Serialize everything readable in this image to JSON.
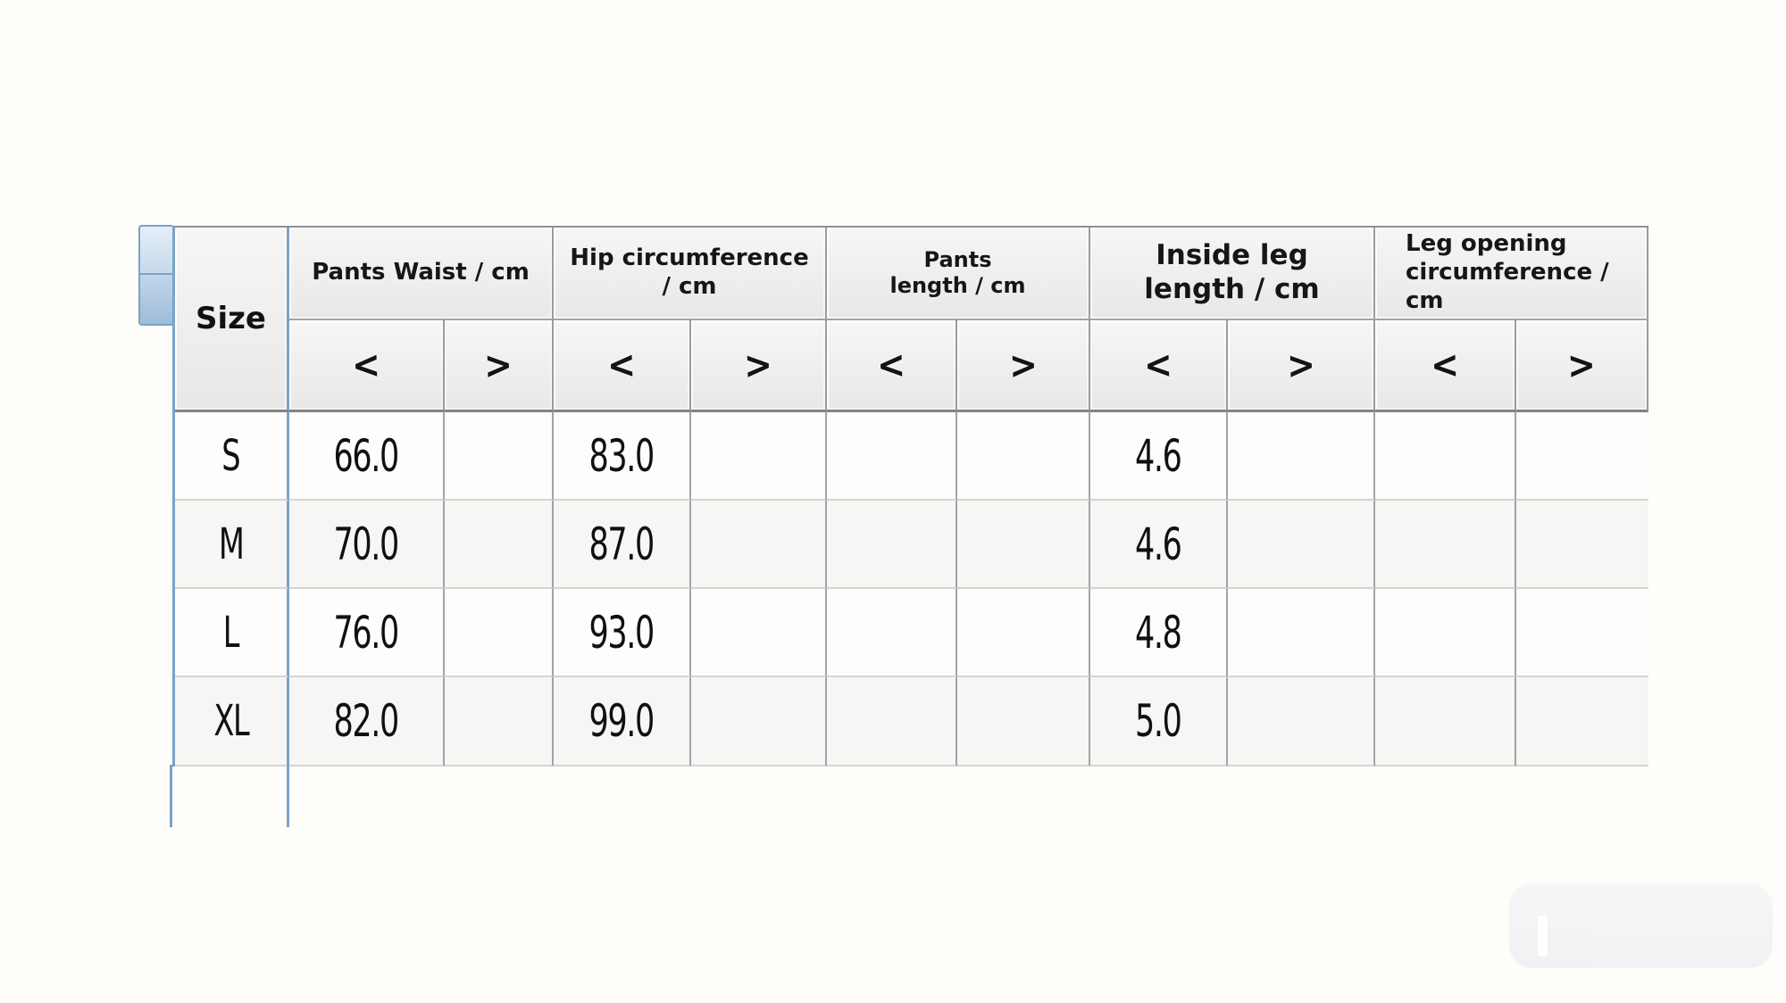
{
  "table": {
    "size_header": "Size",
    "groups": [
      {
        "line1": "Pants Waist / cm",
        "line2": ""
      },
      {
        "line1": "Hip circumference",
        "line2": "/ cm"
      },
      {
        "line1": "Pants",
        "line2": "length / cm"
      },
      {
        "line1": "Inside leg",
        "line2": "length / cm"
      },
      {
        "line1": "Leg opening",
        "line2": "circumference / cm"
      }
    ],
    "arrows": [
      "<",
      ">",
      "<",
      ">",
      "<",
      ">",
      "<",
      ">",
      "<",
      ">"
    ],
    "rows": [
      {
        "size": "S",
        "cells": [
          "66.0",
          "",
          "83.0",
          "",
          "",
          "",
          "4.6",
          "",
          "",
          ""
        ]
      },
      {
        "size": "M",
        "cells": [
          "70.0",
          "",
          "87.0",
          "",
          "",
          "",
          "4.6",
          "",
          "",
          ""
        ]
      },
      {
        "size": "L",
        "cells": [
          "76.0",
          "",
          "93.0",
          "",
          "",
          "",
          "4.8",
          "",
          "",
          ""
        ]
      },
      {
        "size": "XL",
        "cells": [
          "82.0",
          "",
          "99.0",
          "",
          "",
          "",
          "5.0",
          "",
          "",
          ""
        ]
      }
    ]
  },
  "colors": {
    "accent_blue": "#7ba3c7",
    "header_border": "#8f8f8f",
    "grid_line": "#a3a3a3",
    "row_divider": "#d4d4d1",
    "header_bg": "#efefed",
    "text": "#161616"
  }
}
